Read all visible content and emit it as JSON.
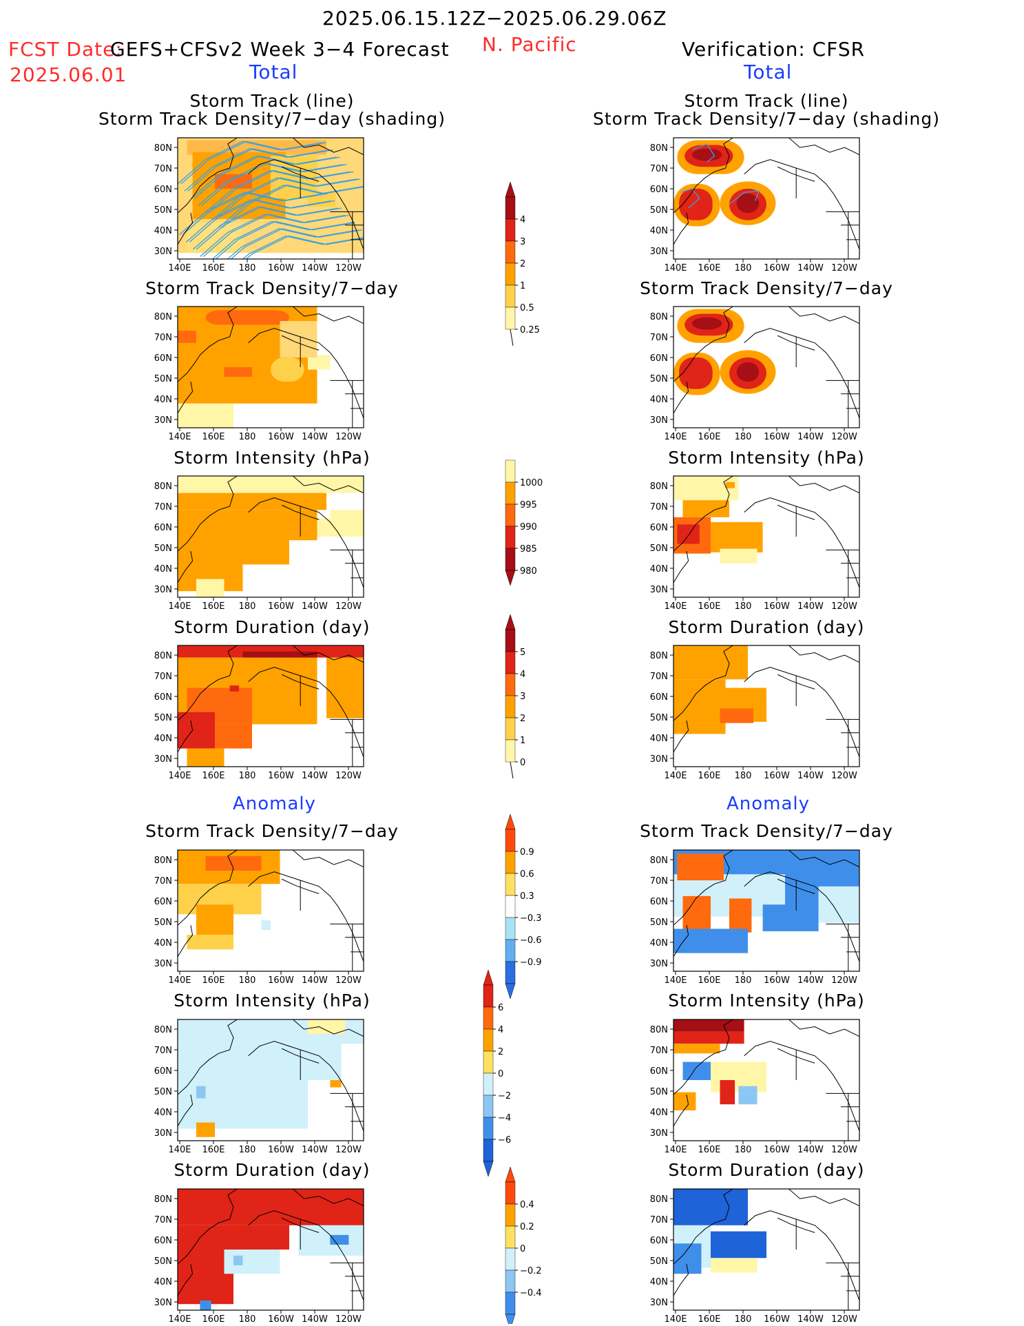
{
  "header": {
    "date_range": "2025.06.15.12Z−2025.06.29.06Z",
    "fcst_label": "FCST Date:",
    "fcst_model": "GEFS+CFSv2 Week 3−4 Forecast",
    "fcst_date": "2025.06.01",
    "region": "N. Pacific",
    "verification": "Verification: CFSR"
  },
  "sections": {
    "total": "Total",
    "anomaly": "Anomaly"
  },
  "panel_titles": {
    "track_line": "Storm Track (line)",
    "track_shading": "Storm Track Density/7−day (shading)",
    "density": "Storm Track Density/7−day",
    "intensity": "Storm Intensity (hPa)",
    "duration": "Storm Duration (day)"
  },
  "axes": {
    "lon_ticks": [
      "140E",
      "160E",
      "180",
      "160W",
      "140W",
      "120W"
    ],
    "lat_ticks": [
      "80N",
      "70N",
      "60N",
      "50N",
      "40N",
      "30N"
    ]
  },
  "colorbars": {
    "density_total": {
      "labels": [
        "4",
        "3",
        "2",
        "1",
        "0.5",
        "0.25"
      ],
      "colors": [
        "#a50f15",
        "#e02418",
        "#ff6a0e",
        "#ffa200",
        "#ffd04a",
        "#fff6a8"
      ]
    },
    "intensity_total": {
      "labels": [
        "1000",
        "995",
        "990",
        "985",
        "980"
      ],
      "colors": [
        "#fff6a8",
        "#ffa200",
        "#ff6a0e",
        "#e02418",
        "#a50f15"
      ]
    },
    "duration_total": {
      "labels": [
        "5",
        "4",
        "3",
        "2",
        "1",
        "0"
      ],
      "colors": [
        "#a50f15",
        "#e02418",
        "#ff6a0e",
        "#ffa200",
        "#ffd04a",
        "#fff6a8"
      ]
    },
    "density_anom": {
      "labels": [
        "0.9",
        "0.6",
        "0.3",
        "−0.3",
        "−0.6",
        "−0.9"
      ],
      "colors": [
        "#ff4a0e",
        "#ffa200",
        "#ffe060",
        "#ffffff",
        "#a6e4f5",
        "#62aef0",
        "#2a6fe0"
      ]
    },
    "intensity_anom": {
      "labels": [
        "6",
        "4",
        "2",
        "0",
        "−2",
        "−4",
        "−6"
      ],
      "colors": [
        "#e02418",
        "#ff6a0e",
        "#ffa200",
        "#ffe060",
        "#d0f0fa",
        "#8cc6f3",
        "#3f8fea",
        "#1f63d8"
      ]
    },
    "duration_anom": {
      "labels": [
        "0.4",
        "0.2",
        "0",
        "−0.2",
        "−0.4"
      ],
      "colors": [
        "#ff4a0e",
        "#ffa200",
        "#ffe060",
        "#d0f0fa",
        "#8cc6f3",
        "#3f8fea"
      ]
    }
  },
  "chart_data": [
    {
      "type": "heatmap",
      "panel": "forecast_track",
      "title": "Storm Track (line) / Storm Track Density/7−day (shading)",
      "palette": "total"
    },
    {
      "type": "heatmap",
      "panel": "verif_track",
      "title": "Storm Track (line) / Storm Track Density/7−day (shading)",
      "palette": "total"
    },
    {
      "type": "heatmap",
      "panel": "forecast_density",
      "title": "Storm Track Density/7−day",
      "palette": "total"
    },
    {
      "type": "heatmap",
      "panel": "verif_density",
      "title": "Storm Track Density/7−day",
      "palette": "total"
    },
    {
      "type": "heatmap",
      "panel": "forecast_intensity",
      "title": "Storm Intensity (hPa)",
      "palette": "intensity"
    },
    {
      "type": "heatmap",
      "panel": "verif_intensity",
      "title": "Storm Intensity (hPa)",
      "palette": "intensity"
    },
    {
      "type": "heatmap",
      "panel": "forecast_duration",
      "title": "Storm Duration (day)",
      "palette": "total"
    },
    {
      "type": "heatmap",
      "panel": "verif_duration",
      "title": "Storm Duration (day)",
      "palette": "total"
    },
    {
      "type": "heatmap",
      "panel": "forecast_density_anom",
      "title": "Storm Track Density/7−day",
      "palette": "anomaly"
    },
    {
      "type": "heatmap",
      "panel": "verif_density_anom",
      "title": "Storm Track Density/7−day",
      "palette": "anomaly"
    },
    {
      "type": "heatmap",
      "panel": "forecast_intensity_anom",
      "title": "Storm Intensity (hPa)",
      "palette": "anomaly"
    },
    {
      "type": "heatmap",
      "panel": "verif_intensity_anom",
      "title": "Storm Intensity (hPa)",
      "palette": "anomaly"
    },
    {
      "type": "heatmap",
      "panel": "forecast_duration_anom",
      "title": "Storm Duration (day)",
      "palette": "anomaly"
    },
    {
      "type": "heatmap",
      "panel": "verif_duration_anom",
      "title": "Storm Duration (day)",
      "palette": "anomaly"
    }
  ]
}
